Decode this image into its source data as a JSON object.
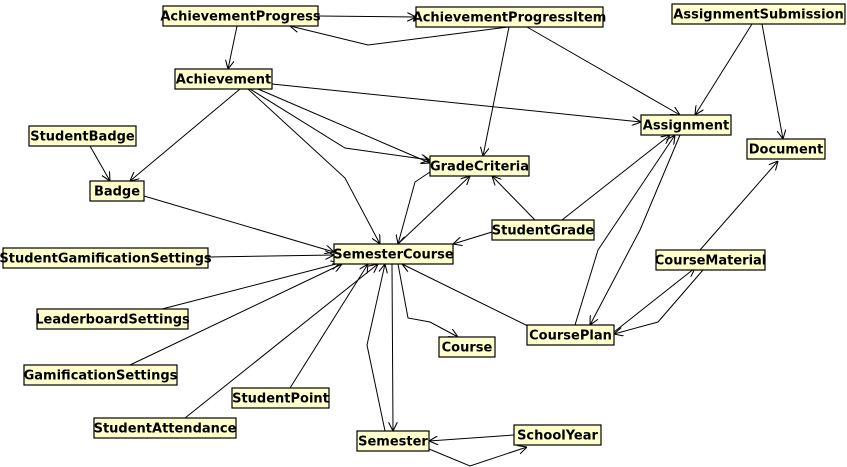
{
  "diagram": {
    "nodes": [
      {
        "id": "AchievementProgress",
        "label": "AchievementProgress"
      },
      {
        "id": "AchievementProgressItem",
        "label": "AchievementProgressItem"
      },
      {
        "id": "AssignmentSubmission",
        "label": "AssignmentSubmission"
      },
      {
        "id": "Achievement",
        "label": "Achievement"
      },
      {
        "id": "Assignment",
        "label": "Assignment"
      },
      {
        "id": "StudentBadge",
        "label": "StudentBadge"
      },
      {
        "id": "Document",
        "label": "Document"
      },
      {
        "id": "GradeCriteria",
        "label": "GradeCriteria"
      },
      {
        "id": "Badge",
        "label": "Badge"
      },
      {
        "id": "StudentGrade",
        "label": "StudentGrade"
      },
      {
        "id": "StudentGamificationSettings",
        "label": "StudentGamificationSettings"
      },
      {
        "id": "SemesterCourse",
        "label": "SemesterCourse"
      },
      {
        "id": "CourseMaterial",
        "label": "CourseMaterial"
      },
      {
        "id": "LeaderboardSettings",
        "label": "LeaderboardSettings"
      },
      {
        "id": "CoursePlan",
        "label": "CoursePlan"
      },
      {
        "id": "Course",
        "label": "Course"
      },
      {
        "id": "GamificationSettings",
        "label": "GamificationSettings"
      },
      {
        "id": "StudentPoint",
        "label": "StudentPoint"
      },
      {
        "id": "StudentAttendance",
        "label": "StudentAttendance"
      },
      {
        "id": "SchoolYear",
        "label": "SchoolYear"
      },
      {
        "id": "Semester",
        "label": "Semester"
      }
    ],
    "edges": [
      {
        "from": "AchievementProgress",
        "to": "AchievementProgressItem"
      },
      {
        "from": "AchievementProgress",
        "to": "Achievement"
      },
      {
        "from": "AchievementProgressItem",
        "to": "AchievementProgress"
      },
      {
        "from": "AchievementProgressItem",
        "to": "GradeCriteria"
      },
      {
        "from": "AchievementProgressItem",
        "to": "Assignment"
      },
      {
        "from": "AssignmentSubmission",
        "to": "Assignment"
      },
      {
        "from": "AssignmentSubmission",
        "to": "Document"
      },
      {
        "from": "Achievement",
        "to": "Badge"
      },
      {
        "from": "Achievement",
        "to": "Assignment"
      },
      {
        "from": "Achievement",
        "to": "GradeCriteria"
      },
      {
        "from": "Achievement",
        "to": "GradeCriteria"
      },
      {
        "from": "Achievement",
        "to": "SemesterCourse"
      },
      {
        "from": "StudentBadge",
        "to": "Badge"
      },
      {
        "from": "Badge",
        "to": "SemesterCourse"
      },
      {
        "from": "GradeCriteria",
        "to": "SemesterCourse"
      },
      {
        "from": "SemesterCourse",
        "to": "GradeCriteria"
      },
      {
        "from": "StudentGrade",
        "to": "GradeCriteria"
      },
      {
        "from": "StudentGrade",
        "to": "SemesterCourse"
      },
      {
        "from": "StudentGrade",
        "to": "Assignment"
      },
      {
        "from": "StudentGamificationSettings",
        "to": "SemesterCourse"
      },
      {
        "from": "LeaderboardSettings",
        "to": "SemesterCourse"
      },
      {
        "from": "GamificationSettings",
        "to": "SemesterCourse"
      },
      {
        "from": "StudentPoint",
        "to": "SemesterCourse"
      },
      {
        "from": "StudentAttendance",
        "to": "SemesterCourse"
      },
      {
        "from": "SemesterCourse",
        "to": "Course"
      },
      {
        "from": "SemesterCourse",
        "to": "Semester"
      },
      {
        "from": "Semester",
        "to": "SemesterCourse"
      },
      {
        "from": "CoursePlan",
        "to": "SemesterCourse"
      },
      {
        "from": "CoursePlan",
        "to": "Assignment"
      },
      {
        "from": "Assignment",
        "to": "CoursePlan"
      },
      {
        "from": "CoursePlan",
        "to": "CourseMaterial"
      },
      {
        "from": "CourseMaterial",
        "to": "CoursePlan"
      },
      {
        "from": "CourseMaterial",
        "to": "Document"
      },
      {
        "from": "SchoolYear",
        "to": "Semester"
      },
      {
        "from": "Semester",
        "to": "SchoolYear"
      }
    ]
  }
}
